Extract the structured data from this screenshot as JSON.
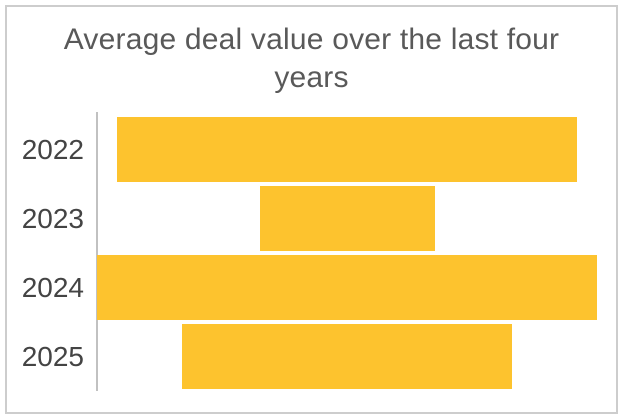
{
  "chart_data": {
    "type": "bar",
    "subtype": "horizontal centered bars (funnel style)",
    "title": "Average deal value over the last four years",
    "categories": [
      "2022",
      "2023",
      "2024",
      "2025"
    ],
    "values_relative_pct_of_max": [
      92,
      35,
      100,
      66
    ],
    "value_axis": "unlabeled - no ticks, gridlines or data labels; bar lengths are proportional estimates",
    "xlabel": "",
    "ylabel": "",
    "grid": false,
    "legend": false,
    "bars_centered_on_plot_midline": true,
    "colors": {
      "bar": "#FDC32E",
      "title_text": "#595959",
      "category_label_text": "#444444",
      "category_axis_line": "#C1C1C1",
      "frame_border": "#CDCDCD",
      "background": "#FFFFFF"
    }
  }
}
